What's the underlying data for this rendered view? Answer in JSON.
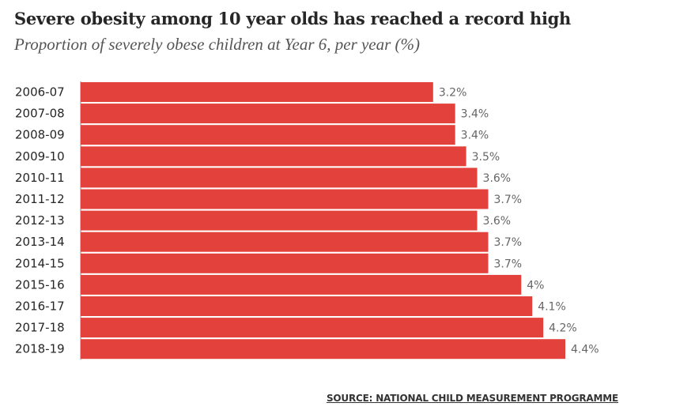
{
  "title": "Severe obesity among 10 year olds has reached a record high",
  "subtitle": "Proportion of severely obese children at Year 6, per year (%)",
  "source": "SOURCE: NATIONAL CHILD MEASUREMENT PROGRAMME",
  "colors": {
    "bar": "#e3423c",
    "category_text": "#262626",
    "value_text": "#666666"
  },
  "chart_data": {
    "type": "bar",
    "orientation": "horizontal",
    "categories": [
      "2006-07",
      "2007-08",
      "2008-09",
      "2009-10",
      "2010-11",
      "2011-12",
      "2012-13",
      "2013-14",
      "2014-15",
      "2015-16",
      "2016-17",
      "2017-18",
      "2018-19"
    ],
    "values": [
      3.2,
      3.4,
      3.4,
      3.5,
      3.6,
      3.7,
      3.6,
      3.7,
      3.7,
      4.0,
      4.1,
      4.2,
      4.4
    ],
    "data_labels": [
      "3.2%",
      "3.4%",
      "3.4%",
      "3.5%",
      "3.6%",
      "3.7%",
      "3.6%",
      "3.7%",
      "3.7%",
      "4%",
      "4.1%",
      "4.2%",
      "4.4%"
    ],
    "title": "Severe obesity among 10 year olds has reached a record high",
    "subtitle": "Proportion of severely obese children at Year 6, per year (%)",
    "xlim": [
      0,
      4.4
    ],
    "grid": false,
    "legend": "none"
  }
}
